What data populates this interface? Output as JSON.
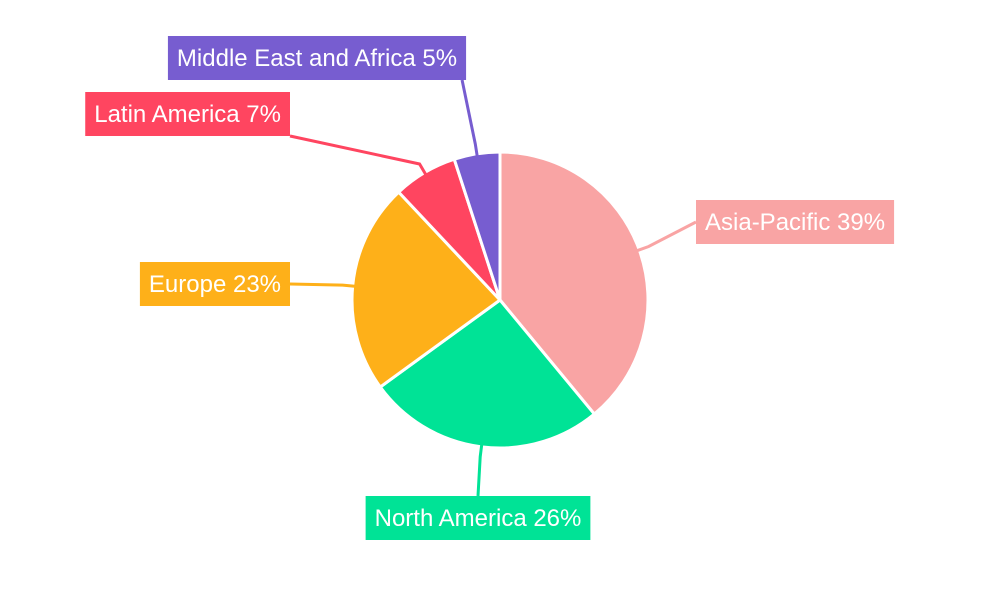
{
  "chart_data": {
    "type": "pie",
    "title": "",
    "legend": "none",
    "slices": [
      {
        "name": "Asia-Pacific",
        "value": 39,
        "label": "Asia-Pacific 39%",
        "color": "#f9a4a4"
      },
      {
        "name": "North America",
        "value": 26,
        "label": "North America 26%",
        "color": "#00e396"
      },
      {
        "name": "Europe",
        "value": 23,
        "label": "Europe 23%",
        "color": "#feb019"
      },
      {
        "name": "Latin America",
        "value": 7,
        "label": "Latin America 7%",
        "color": "#ff4560"
      },
      {
        "name": "Middle East and Africa",
        "value": 5,
        "label": "Middle East and Africa 5%",
        "color": "#775dd0"
      }
    ]
  }
}
